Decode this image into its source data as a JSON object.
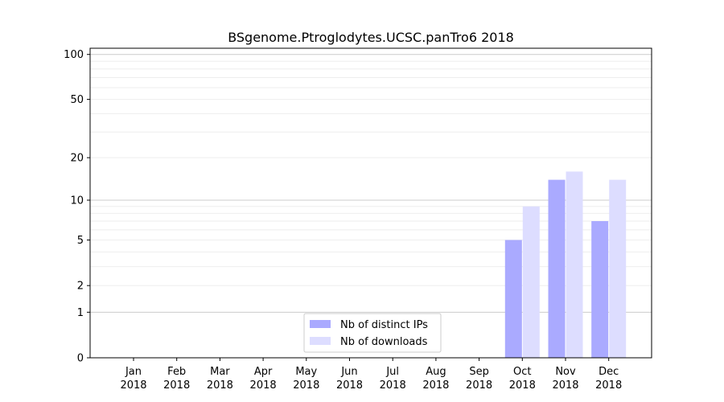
{
  "chart_data": {
    "type": "bar",
    "title": "BSgenome.Ptroglodytes.UCSC.panTro6 2018",
    "xlabel": "",
    "ylabel": "",
    "yscale": "log(1+y)",
    "ylim": [
      0,
      110
    ],
    "yticks": [
      0,
      1,
      2,
      5,
      10,
      20,
      50,
      100
    ],
    "months": [
      "Jan",
      "Feb",
      "Mar",
      "Apr",
      "May",
      "Jun",
      "Jul",
      "Aug",
      "Sep",
      "Oct",
      "Nov",
      "Dec"
    ],
    "year": "2018",
    "series": [
      {
        "name": "Nb of distinct IPs",
        "color": "#aaaaff",
        "values": [
          0,
          0,
          0,
          0,
          0,
          0,
          0,
          0,
          0,
          5,
          14,
          7
        ]
      },
      {
        "name": "Nb of downloads",
        "color": "#ddddff",
        "values": [
          0,
          0,
          0,
          0,
          0,
          0,
          0,
          0,
          0,
          9,
          16,
          14
        ]
      }
    ],
    "grid": true,
    "legend_position": "bottom-center"
  }
}
